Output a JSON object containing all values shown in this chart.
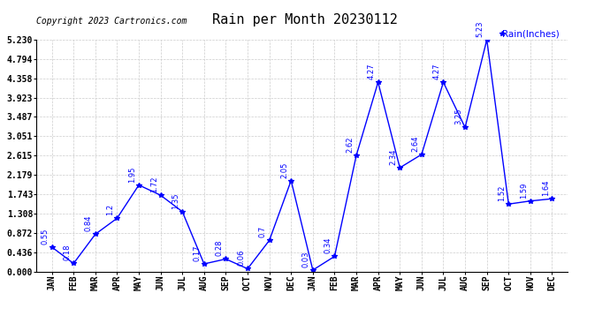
{
  "title": "Rain per Month 20230112",
  "copyright_text": "Copyright 2023 Cartronics.com",
  "legend_label": "Rain(Inches)",
  "months": [
    "JAN",
    "FEB",
    "MAR",
    "APR",
    "MAY",
    "JUN",
    "JUL",
    "AUG",
    "SEP",
    "OCT",
    "NOV",
    "DEC",
    "JAN",
    "FEB",
    "MAR",
    "APR",
    "MAY",
    "JUN",
    "JUL",
    "AUG",
    "SEP",
    "OCT",
    "NOV",
    "DEC"
  ],
  "values": [
    0.55,
    0.18,
    0.84,
    1.2,
    1.95,
    1.72,
    1.35,
    0.17,
    0.28,
    0.06,
    0.7,
    2.05,
    0.03,
    0.34,
    2.62,
    4.27,
    2.34,
    2.64,
    4.27,
    3.25,
    5.23,
    1.52,
    1.59,
    1.64
  ],
  "ylim_min": 0.0,
  "ylim_max": 5.23,
  "yticks": [
    0.0,
    0.436,
    0.872,
    1.308,
    1.743,
    2.179,
    2.615,
    3.051,
    3.487,
    3.923,
    4.358,
    4.794,
    5.23
  ],
  "line_color": "blue",
  "marker_color": "blue",
  "label_color": "blue",
  "title_color": "black",
  "background_color": "white",
  "grid_color": "#cccccc",
  "title_fontsize": 11,
  "label_fontsize": 6.0,
  "tick_fontsize": 7.0,
  "copyright_fontsize": 7.0,
  "legend_fontsize": 7.5
}
